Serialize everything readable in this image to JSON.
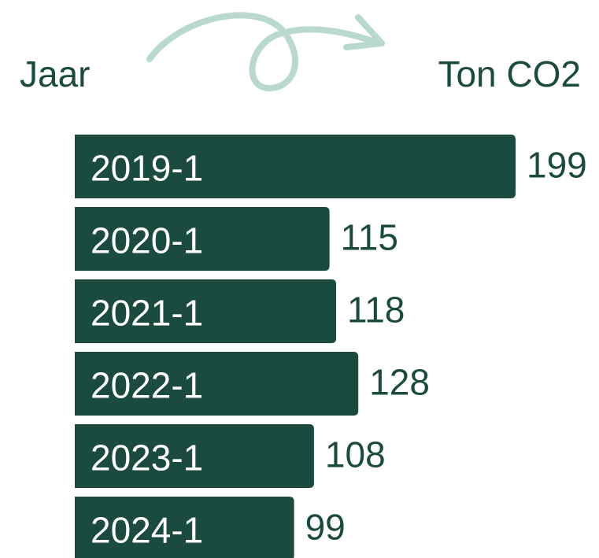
{
  "chart_data": {
    "type": "bar",
    "orientation": "horizontal",
    "y_label": "Jaar",
    "x_label": "Ton CO2",
    "categories": [
      "2019-1",
      "2020-1",
      "2021-1",
      "2022-1",
      "2023-1",
      "2024-1"
    ],
    "values": [
      199,
      115,
      118,
      128,
      108,
      99
    ],
    "color": "#1b4b3f"
  }
}
